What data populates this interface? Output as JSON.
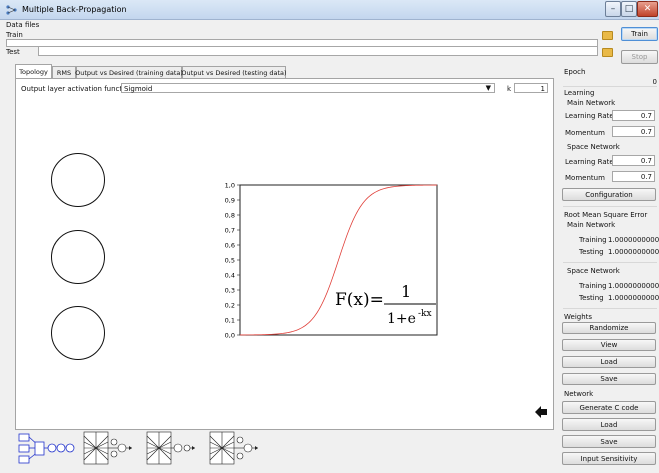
{
  "window": {
    "title": "Multiple Back-Propagation"
  },
  "data_files": {
    "group_label": "Data files",
    "train_label": "Train",
    "test_label": "Test"
  },
  "buttons": {
    "train": "Train",
    "stop": "Stop"
  },
  "tabs": [
    {
      "label": "Topology"
    },
    {
      "label": "RMS"
    },
    {
      "label": "Output vs Desired (training data)"
    },
    {
      "label": "Output vs Desired (testing data)"
    }
  ],
  "topology": {
    "activation_label": "Output layer activation function",
    "activation_value": "Sigmoid",
    "k_label": "k",
    "k_value": "1"
  },
  "sigmoid_plot": {
    "y_ticks": [
      "1,0",
      "0,9",
      "0,8",
      "0,7",
      "0,6",
      "0,5",
      "0,4",
      "0,3",
      "0,2",
      "0,1",
      "0,0"
    ],
    "formula_lhs": "F(x)=",
    "formula_num": "1",
    "formula_den": "1+e",
    "formula_exp": "-kx",
    "curve_color": "#e0403a"
  },
  "right_panel": {
    "epoch_label": "Epoch",
    "epoch_value": "0",
    "learning_label": "Learning",
    "main_network_label": "Main Network",
    "space_network_label": "Space Network",
    "learning_rate_label": "Learning Rate",
    "momentum_label": "Momentum",
    "main_learning_rate": "0.7",
    "main_momentum": "0.7",
    "space_learning_rate": "0.7",
    "space_momentum": "0.7",
    "configuration_btn": "Configuration",
    "rms_label": "Root Mean Square Error",
    "training_label": "Training",
    "testing_label": "Testing",
    "main_training": "1.0000000000",
    "main_testing": "1.0000000000",
    "space_training": "1.0000000000",
    "space_testing": "1.0000000000",
    "weights_label": "Weights",
    "randomize_btn": "Randomize",
    "view_btn": "View",
    "load_btn": "Load",
    "save_btn": "Save",
    "network_label": "Network",
    "generate_c_btn": "Generate C code",
    "net_load_btn": "Load",
    "net_save_btn": "Save",
    "input_sensitivity_btn": "Input Sensitivity"
  },
  "icons": {
    "app": "app-icon",
    "folder": "folder-icon",
    "arrow": "arrow-left-icon",
    "network": "network-diagram-icon",
    "dropdown": "dropdown-arrow-icon"
  }
}
